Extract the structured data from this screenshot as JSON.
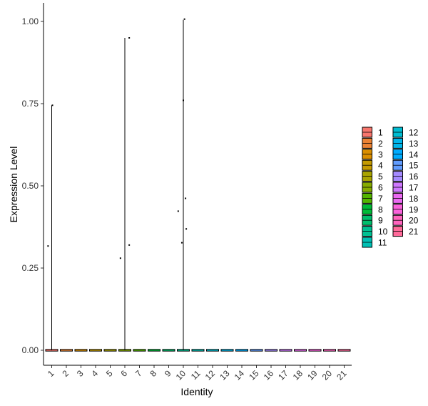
{
  "chart_data": {
    "type": "violin",
    "xlabel": "Identity",
    "ylabel": "Expression Level",
    "ylim": [
      -0.04,
      1.05
    ],
    "yticks": [
      0.0,
      0.25,
      0.5,
      0.75,
      1.0
    ],
    "ytick_labels": [
      "0.00",
      "0.25",
      "0.50",
      "0.75",
      "1.00"
    ],
    "categories": [
      "1",
      "2",
      "3",
      "4",
      "5",
      "6",
      "7",
      "8",
      "9",
      "10",
      "11",
      "12",
      "13",
      "14",
      "15",
      "16",
      "17",
      "18",
      "19",
      "20",
      "21"
    ],
    "colors": [
      "#F8766D",
      "#EB8335",
      "#DA8E00",
      "#C49A00",
      "#A9A400",
      "#86AC00",
      "#53B400",
      "#00BA38",
      "#00BE6C",
      "#00C092",
      "#00C0B4",
      "#00BDD2",
      "#00B6EB",
      "#00ABFD",
      "#619CFF",
      "#A58AFF",
      "#CF78FF",
      "#EA6AF1",
      "#FA62DB",
      "#FF63BE",
      "#FF6A9A"
    ],
    "violin_max": [
      0.745,
      0,
      0,
      0,
      0,
      0.95,
      0,
      0,
      0,
      1.005,
      0,
      0,
      0,
      0,
      0,
      0,
      0,
      0,
      0,
      0,
      0
    ],
    "points": [
      {
        "category": "1",
        "jitter": -0.25,
        "value": 0.317
      },
      {
        "category": "1",
        "jitter": 0.05,
        "value": 0.745
      },
      {
        "category": "6",
        "jitter": -0.3,
        "value": 0.28
      },
      {
        "category": "6",
        "jitter": 0.3,
        "value": 0.95
      },
      {
        "category": "6",
        "jitter": 0.3,
        "value": 0.32
      },
      {
        "category": "10",
        "jitter": -0.35,
        "value": 0.423
      },
      {
        "category": "10",
        "jitter": -0.1,
        "value": 0.327
      },
      {
        "category": "10",
        "jitter": 0.08,
        "value": 1.007
      },
      {
        "category": "10",
        "jitter": 0.0,
        "value": 0.76
      },
      {
        "category": "10",
        "jitter": 0.15,
        "value": 0.462
      },
      {
        "category": "10",
        "jitter": 0.2,
        "value": 0.369
      }
    ],
    "legend": {
      "position": "right",
      "columns": 2,
      "items": [
        "1",
        "2",
        "3",
        "4",
        "5",
        "6",
        "7",
        "8",
        "9",
        "10",
        "11",
        "12",
        "13",
        "14",
        "15",
        "16",
        "17",
        "18",
        "19",
        "20",
        "21"
      ]
    }
  }
}
